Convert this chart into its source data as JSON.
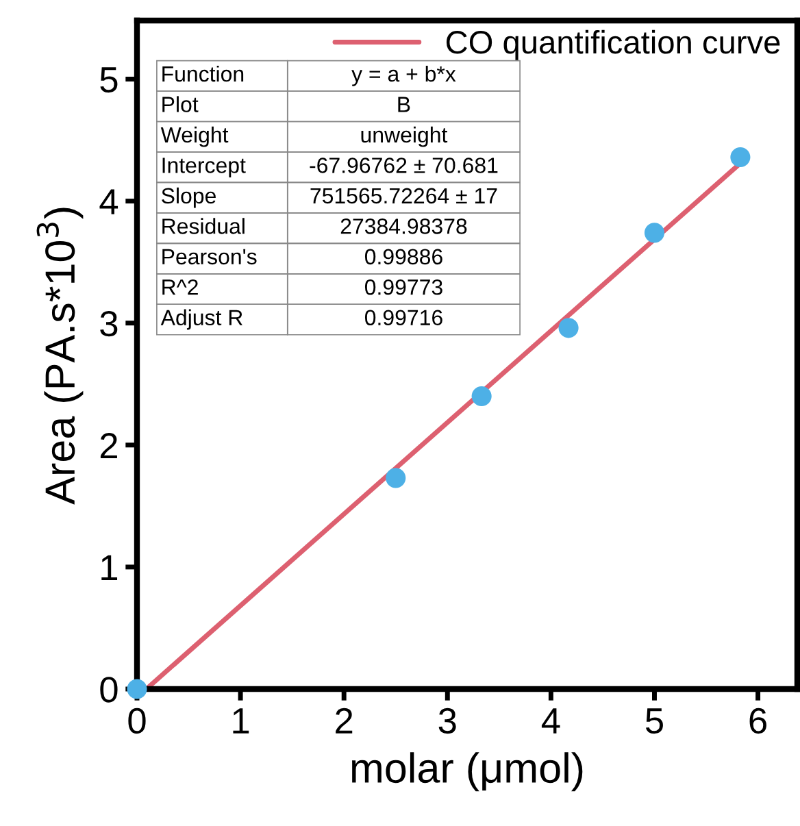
{
  "chart_data": {
    "type": "scatter",
    "xlabel": "molar (μmol)",
    "ylabel": "Area (PA.s*10$^{3}$)",
    "series": [
      {
        "type": "line",
        "marker": "none",
        "name": "CO quantification curve",
        "color": "#dd6070",
        "x": [
          0.09,
          5.83
        ],
        "values": [
          0,
          4.31
        ]
      },
      {
        "color": "#4db0e6",
        "x": [
          0,
          2.5,
          3.33,
          4.17,
          5.0,
          5.83
        ],
        "values": [
          0,
          1.73,
          2.4,
          2.96,
          3.74,
          4.36
        ]
      }
    ],
    "annotations": [
      "Function",
      "y = a + b*x",
      "Plot",
      "B",
      "Weight",
      "unweight",
      "Intercept",
      "-67.96762 ± 70.681",
      "Slope",
      "751565.72264 ± 17",
      "Residual",
      "27384.98378",
      "Pearson's",
      "0.99886",
      "R^2",
      "0.99773",
      "Adjust R",
      "0.99716"
    ],
    "xlim": [
      0,
      6.38
    ],
    "ylim": [
      0,
      5.48
    ],
    "xticks": [
      0,
      1,
      2,
      3,
      4,
      5,
      6
    ],
    "yticks": [
      0,
      1,
      2,
      3,
      4,
      5
    ],
    "marker": "circle",
    "line_style": "solid",
    "legend": "top right",
    "grid": false
  }
}
